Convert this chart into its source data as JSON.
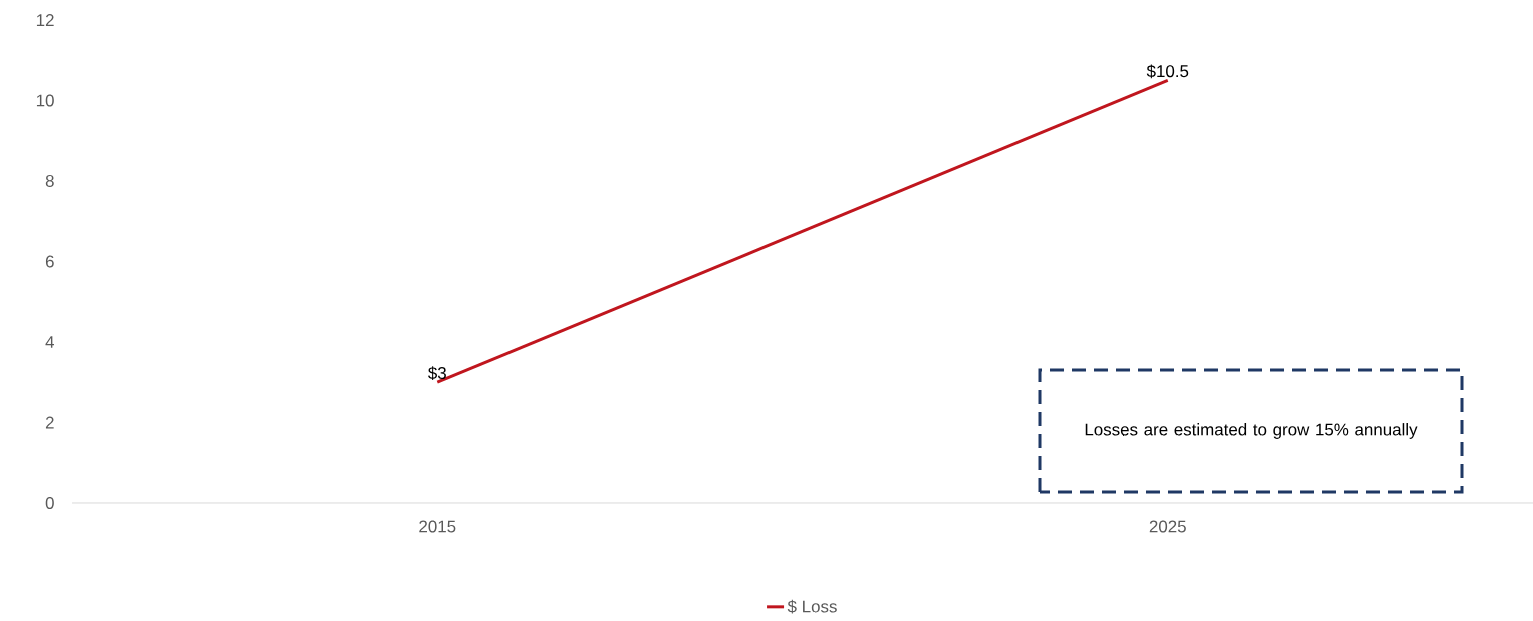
{
  "chart_data": {
    "type": "line",
    "categories": [
      "2015",
      "2025"
    ],
    "series": [
      {
        "name": "$ Loss",
        "color": "#c0161e",
        "values": [
          3,
          10.5
        ],
        "value_labels": [
          "$3",
          "$10.5"
        ]
      }
    ],
    "ylim": [
      0,
      12
    ],
    "yticks": [
      0,
      2,
      4,
      6,
      8,
      10,
      12
    ],
    "grid": false,
    "legend": "bottom",
    "marker": "none",
    "line_style": "solid",
    "annotations": [
      "Losses are estimated to grow 15% annually"
    ]
  }
}
